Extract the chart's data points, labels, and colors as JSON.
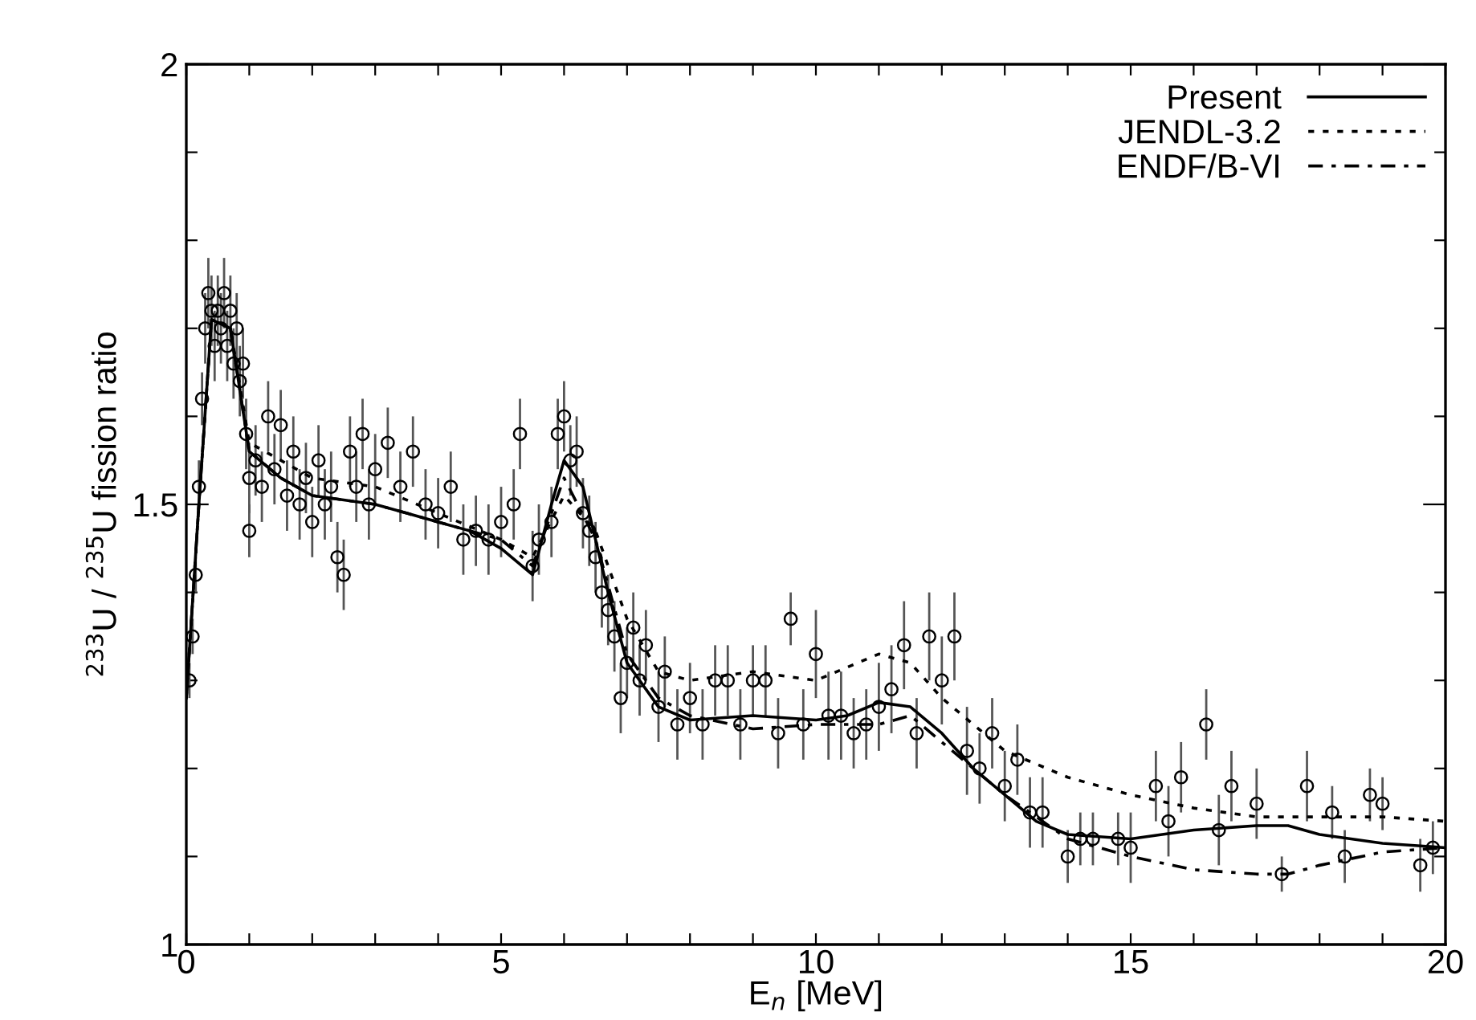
{
  "chart_data": {
    "type": "line",
    "xlabel": "E$_{n}$ [MeV]",
    "ylabel": "$^{233}$U / $^{235}$U fission ratio",
    "xlim": [
      0,
      20
    ],
    "ylim": [
      1,
      2
    ],
    "xticks": [
      0,
      {
        "value": 1,
        "label": null
      },
      {
        "value": 2,
        "label": null
      },
      {
        "value": 3,
        "label": null
      },
      {
        "value": 4,
        "label": null
      },
      5,
      {
        "value": 6,
        "label": null
      },
      {
        "value": 7,
        "label": null
      },
      {
        "value": 8,
        "label": null
      },
      {
        "value": 9,
        "label": null
      },
      10,
      {
        "value": 11,
        "label": null
      },
      {
        "value": 12,
        "label": null
      },
      {
        "value": 13,
        "label": null
      },
      {
        "value": 14,
        "label": null
      },
      15,
      {
        "value": 16,
        "label": null
      },
      {
        "value": 17,
        "label": null
      },
      {
        "value": 18,
        "label": null
      },
      {
        "value": 19,
        "label": null
      },
      20
    ],
    "yticks": [
      1,
      {
        "value": 1.1,
        "label": null
      },
      {
        "value": 1.2,
        "label": null
      },
      {
        "value": 1.3,
        "label": null
      },
      {
        "value": 1.4,
        "label": null
      },
      1.5,
      {
        "value": 1.6,
        "label": null
      },
      {
        "value": 1.7,
        "label": null
      },
      {
        "value": 1.8,
        "label": null
      },
      {
        "value": 1.9,
        "label": null
      },
      2
    ],
    "grid": false,
    "legend": "top right",
    "series": [
      {
        "type": "scatter",
        "color": "#000000",
        "marker": "circle",
        "x": [
          0.05,
          0.1,
          0.15,
          0.2,
          0.25,
          0.3,
          0.35,
          0.4,
          0.45,
          0.5,
          0.55,
          0.6,
          0.65,
          0.7,
          0.75,
          0.8,
          0.85,
          0.9,
          0.95,
          1.0,
          1.0,
          1.1,
          1.2,
          1.3,
          1.4,
          1.5,
          1.6,
          1.7,
          1.8,
          1.9,
          2.0,
          2.1,
          2.2,
          2.3,
          2.4,
          2.5,
          2.6,
          2.7,
          2.8,
          2.9,
          3.0,
          3.2,
          3.4,
          3.6,
          3.8,
          4.0,
          4.2,
          4.4,
          4.6,
          4.8,
          5.0,
          5.2,
          5.3,
          5.5,
          5.6,
          5.8,
          5.9,
          6.0,
          6.1,
          6.2,
          6.3,
          6.4,
          6.5,
          6.6,
          6.7,
          6.8,
          6.9,
          7.0,
          7.1,
          7.2,
          7.3,
          7.5,
          7.6,
          7.8,
          8.0,
          8.2,
          8.4,
          8.6,
          8.8,
          9.0,
          9.2,
          9.4,
          9.6,
          9.8,
          10.0,
          10.2,
          10.4,
          10.6,
          10.8,
          11.0,
          11.2,
          11.4,
          11.6,
          11.8,
          12.0,
          12.2,
          12.4,
          12.6,
          12.8,
          13.0,
          13.2,
          13.4,
          13.6,
          14.0,
          14.2,
          14.4,
          14.8,
          15.0,
          15.4,
          15.6,
          15.8,
          16.2,
          16.4,
          16.6,
          17.0,
          17.4,
          17.8,
          18.2,
          18.4,
          18.8,
          19.0,
          19.6,
          19.8
        ],
        "values": [
          1.3,
          1.35,
          1.42,
          1.52,
          1.62,
          1.7,
          1.74,
          1.72,
          1.68,
          1.72,
          1.7,
          1.74,
          1.68,
          1.72,
          1.66,
          1.7,
          1.64,
          1.66,
          1.58,
          1.53,
          1.47,
          1.55,
          1.52,
          1.6,
          1.54,
          1.59,
          1.51,
          1.56,
          1.5,
          1.53,
          1.48,
          1.55,
          1.5,
          1.52,
          1.44,
          1.42,
          1.56,
          1.52,
          1.58,
          1.5,
          1.54,
          1.57,
          1.52,
          1.56,
          1.5,
          1.49,
          1.52,
          1.46,
          1.47,
          1.46,
          1.48,
          1.5,
          1.58,
          1.43,
          1.46,
          1.48,
          1.58,
          1.6,
          1.55,
          1.56,
          1.49,
          1.47,
          1.44,
          1.4,
          1.38,
          1.35,
          1.28,
          1.32,
          1.36,
          1.3,
          1.34,
          1.27,
          1.31,
          1.25,
          1.28,
          1.25,
          1.3,
          1.3,
          1.25,
          1.3,
          1.3,
          1.24,
          1.37,
          1.25,
          1.33,
          1.26,
          1.26,
          1.24,
          1.25,
          1.27,
          1.29,
          1.34,
          1.24,
          1.35,
          1.3,
          1.35,
          1.22,
          1.2,
          1.24,
          1.18,
          1.21,
          1.15,
          1.15,
          1.1,
          1.12,
          1.12,
          1.12,
          1.11,
          1.18,
          1.14,
          1.19,
          1.25,
          1.13,
          1.18,
          1.16,
          1.08,
          1.18,
          1.15,
          1.1,
          1.17,
          1.16,
          1.09,
          1.11
        ],
        "errors": [
          0.02,
          0.02,
          0.02,
          0.03,
          0.03,
          0.04,
          0.04,
          0.04,
          0.04,
          0.04,
          0.04,
          0.04,
          0.04,
          0.04,
          0.04,
          0.04,
          0.04,
          0.04,
          0.04,
          0.04,
          0.03,
          0.04,
          0.04,
          0.04,
          0.04,
          0.04,
          0.04,
          0.04,
          0.04,
          0.04,
          0.04,
          0.04,
          0.04,
          0.04,
          0.04,
          0.04,
          0.04,
          0.04,
          0.04,
          0.04,
          0.04,
          0.04,
          0.04,
          0.04,
          0.04,
          0.04,
          0.04,
          0.04,
          0.04,
          0.04,
          0.04,
          0.04,
          0.04,
          0.04,
          0.04,
          0.04,
          0.04,
          0.04,
          0.04,
          0.04,
          0.04,
          0.04,
          0.04,
          0.04,
          0.04,
          0.04,
          0.04,
          0.04,
          0.04,
          0.04,
          0.04,
          0.04,
          0.04,
          0.04,
          0.04,
          0.04,
          0.04,
          0.04,
          0.04,
          0.04,
          0.04,
          0.04,
          0.03,
          0.04,
          0.05,
          0.05,
          0.05,
          0.04,
          0.04,
          0.05,
          0.05,
          0.05,
          0.04,
          0.05,
          0.05,
          0.05,
          0.05,
          0.04,
          0.04,
          0.04,
          0.04,
          0.04,
          0.04,
          0.03,
          0.03,
          0.03,
          0.03,
          0.04,
          0.04,
          0.04,
          0.04,
          0.04,
          0.04,
          0.04,
          0.04,
          0.02,
          0.04,
          0.03,
          0.03,
          0.03,
          0.03,
          0.03,
          0.03
        ]
      },
      {
        "name": "Present",
        "line_style": "solid",
        "color": "#000000",
        "x": [
          0,
          0.2,
          0.4,
          0.7,
          1.0,
          1.5,
          2,
          3,
          4,
          4.5,
          5,
          5.5,
          5.8,
          6.0,
          6.3,
          6.7,
          7.0,
          7.5,
          8,
          9,
          10,
          10.5,
          11,
          11.5,
          12,
          12.5,
          13,
          13.5,
          14,
          15,
          16,
          17,
          17.5,
          18,
          19,
          20
        ],
        "values": [
          1.28,
          1.5,
          1.71,
          1.7,
          1.56,
          1.53,
          1.51,
          1.5,
          1.48,
          1.47,
          1.45,
          1.42,
          1.5,
          1.55,
          1.52,
          1.4,
          1.32,
          1.27,
          1.255,
          1.26,
          1.255,
          1.26,
          1.275,
          1.27,
          1.24,
          1.2,
          1.17,
          1.14,
          1.125,
          1.12,
          1.13,
          1.135,
          1.135,
          1.125,
          1.115,
          1.11
        ]
      },
      {
        "name": "JENDL-3.2",
        "line_style": "dotted",
        "color": "#000000",
        "x": [
          0,
          0.2,
          0.4,
          0.7,
          1.0,
          1.5,
          2,
          3,
          4,
          5,
          5.5,
          6.0,
          6.5,
          7.0,
          7.5,
          8,
          9,
          10,
          11,
          11.5,
          12,
          12.5,
          13,
          14,
          15,
          16,
          17,
          18,
          19,
          20
        ],
        "values": [
          1.28,
          1.5,
          1.71,
          1.7,
          1.57,
          1.55,
          1.53,
          1.52,
          1.49,
          1.46,
          1.44,
          1.51,
          1.47,
          1.37,
          1.31,
          1.3,
          1.31,
          1.3,
          1.33,
          1.32,
          1.28,
          1.25,
          1.22,
          1.19,
          1.17,
          1.155,
          1.145,
          1.145,
          1.145,
          1.14
        ]
      },
      {
        "name": "ENDF/B-VI",
        "line_style": "dashdot",
        "color": "#000000",
        "x": [
          0,
          0.2,
          0.4,
          0.7,
          1.0,
          1.5,
          2,
          3,
          4,
          5,
          5.5,
          6,
          6.5,
          7.0,
          7.5,
          8,
          9,
          10,
          11,
          11.5,
          12,
          12.5,
          13,
          14,
          15,
          16,
          17,
          17.5,
          18,
          19,
          20
        ],
        "values": [
          1.28,
          1.5,
          1.71,
          1.7,
          1.56,
          1.53,
          1.51,
          1.5,
          1.48,
          1.46,
          1.43,
          1.53,
          1.46,
          1.33,
          1.28,
          1.26,
          1.245,
          1.25,
          1.25,
          1.26,
          1.23,
          1.2,
          1.17,
          1.12,
          1.1,
          1.085,
          1.08,
          1.08,
          1.09,
          1.105,
          1.11
        ]
      }
    ]
  }
}
